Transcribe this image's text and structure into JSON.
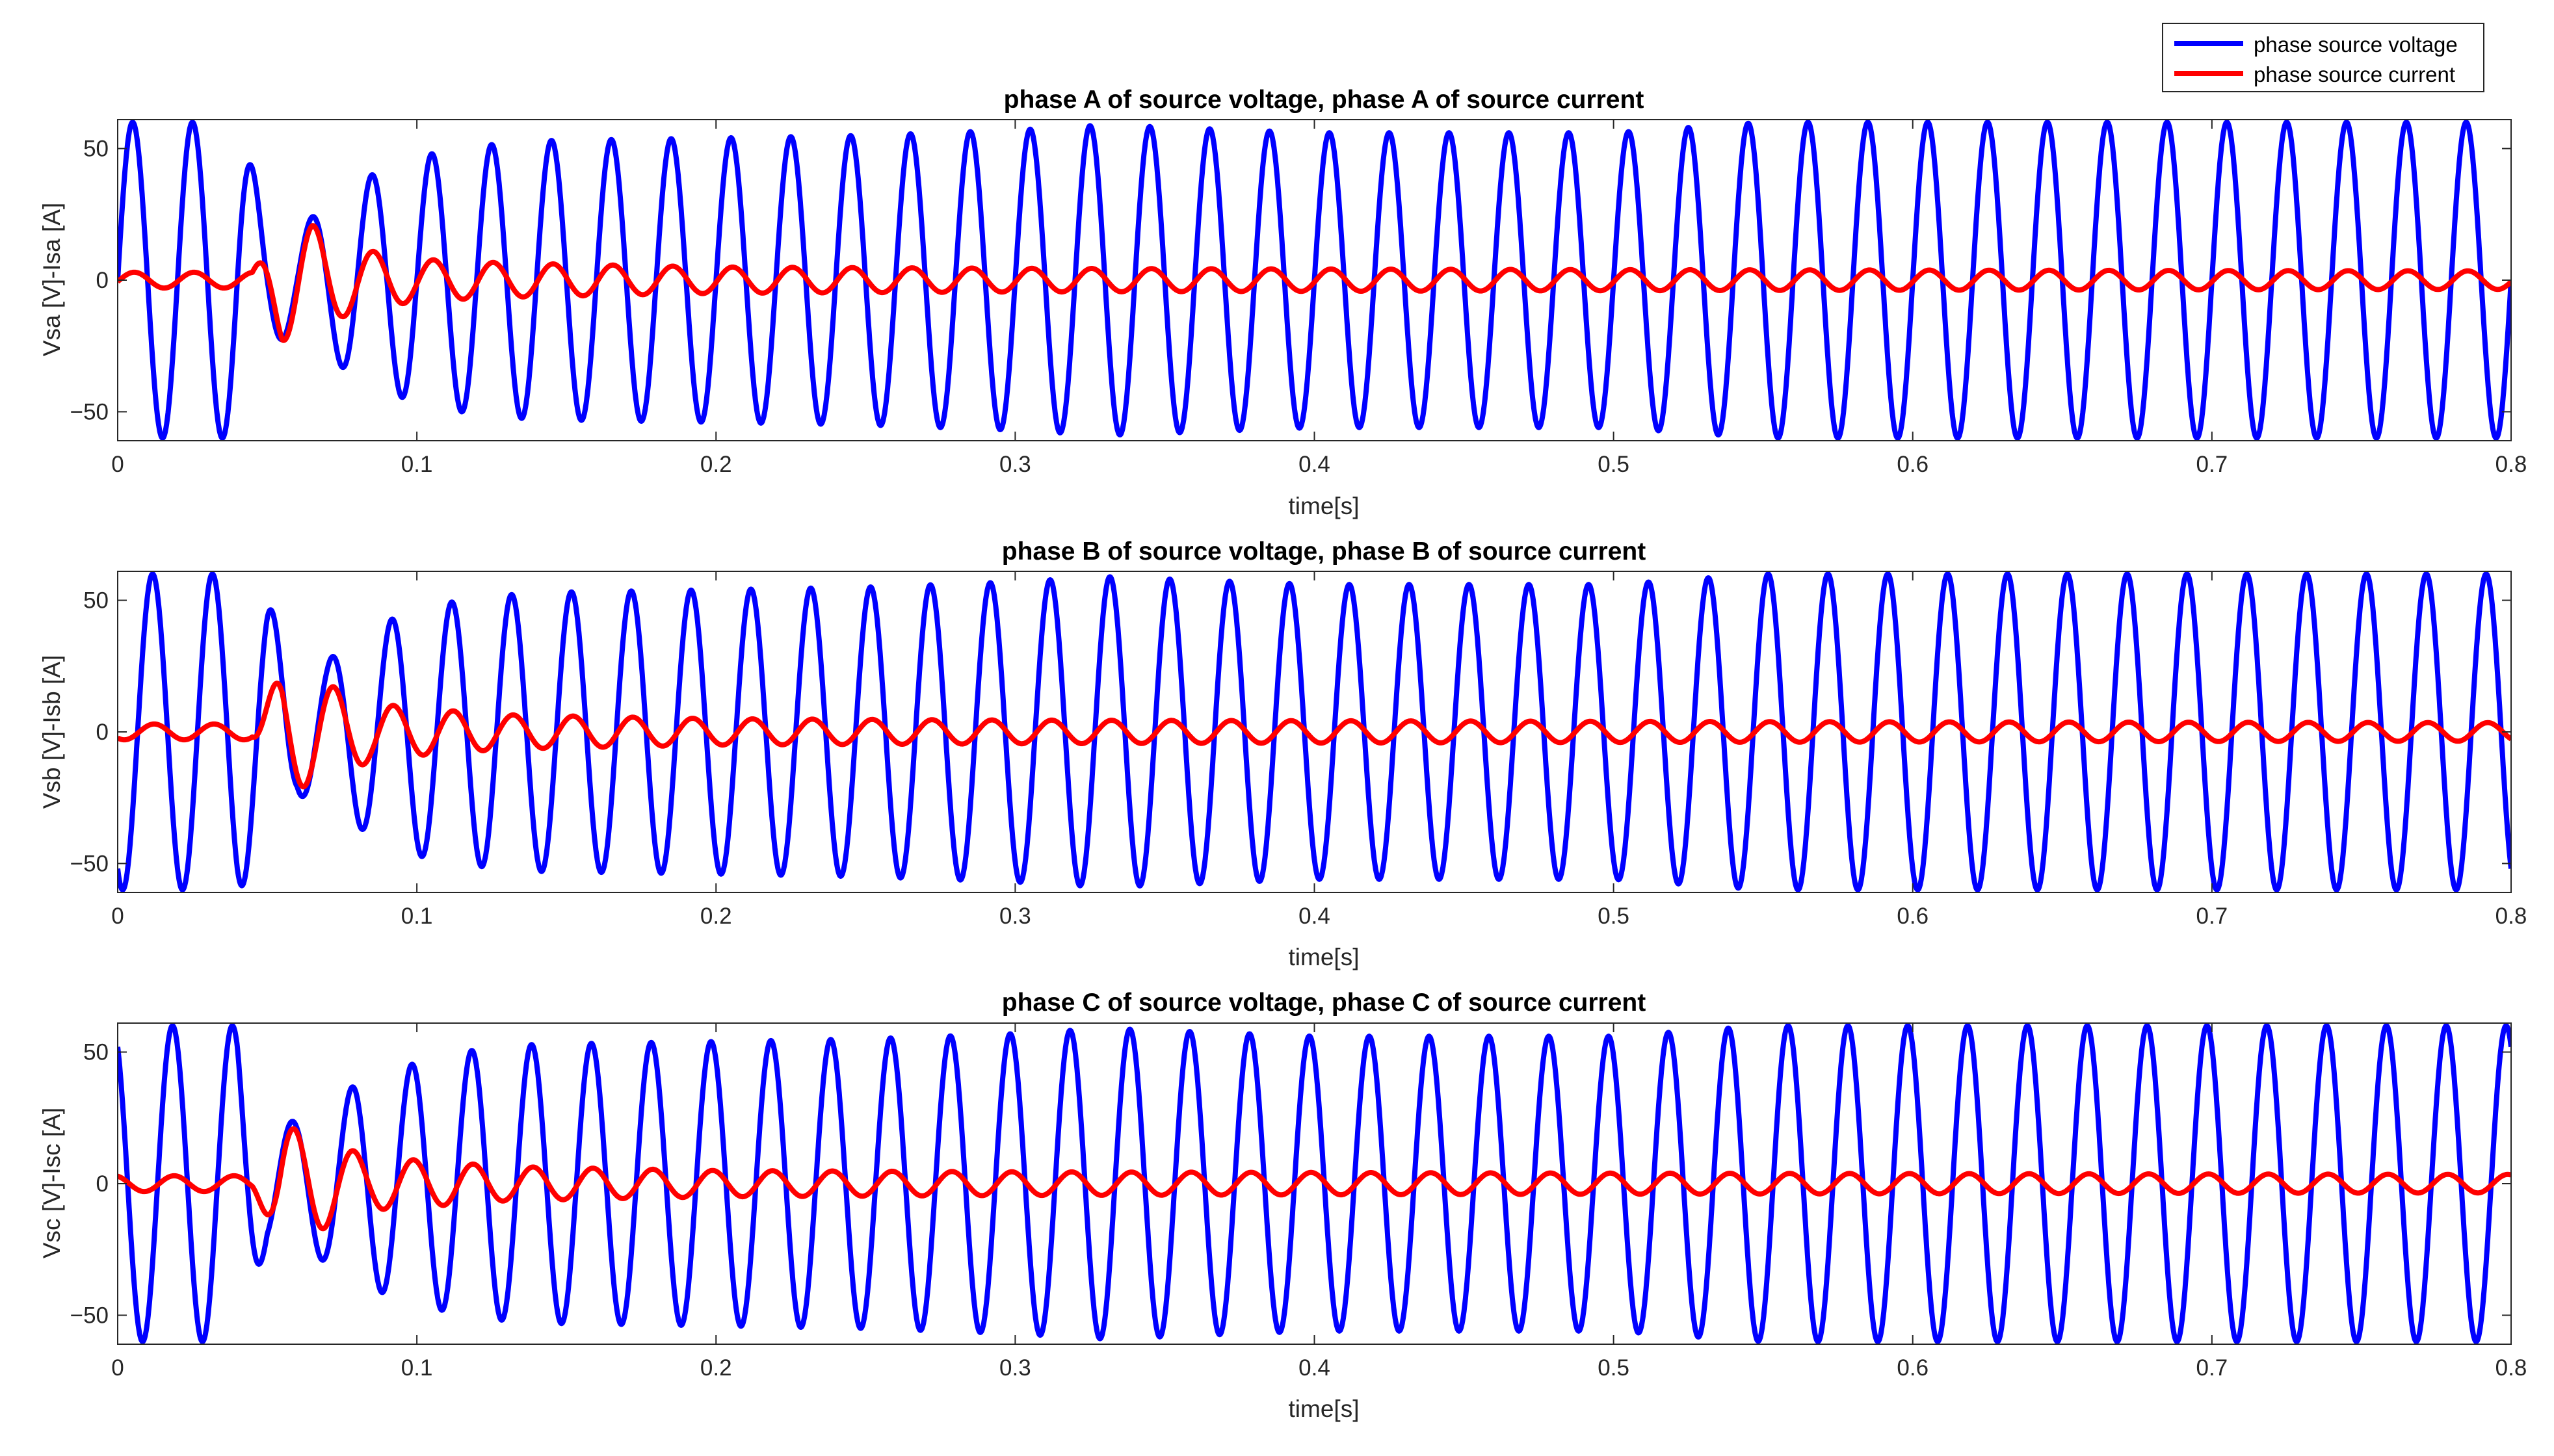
{
  "legend": {
    "entries": [
      {
        "label": "phase source voltage",
        "color": "#0000ff"
      },
      {
        "label": "phase source current",
        "color": "#ff0000"
      }
    ],
    "location": "top-right"
  },
  "chart_data": [
    {
      "type": "line",
      "title": "phase A of source voltage, phase A of source current",
      "xlabel": "time[s]",
      "ylabel": "Vsa [V]-Isa [A]",
      "xlim": [
        0,
        0.8
      ],
      "ylim": [
        -61,
        61
      ],
      "xticks": [
        0,
        0.1,
        0.2,
        0.3,
        0.4,
        0.5,
        0.6,
        0.7,
        0.8
      ],
      "xtick_labels": [
        "0",
        "0.1",
        "0.2",
        "0.3",
        "0.4",
        "0.5",
        "0.6",
        "0.7",
        "0.8"
      ],
      "yticks": [
        -50,
        0,
        50
      ],
      "ytick_labels": [
        "−50",
        "0",
        "50"
      ],
      "grid": false,
      "series": [
        {
          "name": "phase source voltage",
          "color": "#0000ff",
          "frequency_hz": 50,
          "phase_deg": 0,
          "amplitude_envelope": [
            [
              0,
              60
            ],
            [
              0.04,
              60
            ],
            [
              0.05,
              25
            ],
            [
              0.06,
              20
            ],
            [
              0.07,
              28
            ],
            [
              0.08,
              38
            ],
            [
              0.09,
              42
            ],
            [
              0.1,
              47
            ],
            [
              0.12,
              51
            ],
            [
              0.14,
              53
            ],
            [
              0.2,
              54
            ],
            [
              0.25,
              55
            ],
            [
              0.3,
              57
            ],
            [
              0.33,
              59
            ],
            [
              0.4,
              56
            ],
            [
              0.5,
              56
            ],
            [
              0.55,
              60
            ],
            [
              0.8,
              60
            ]
          ]
        },
        {
          "name": "phase source current",
          "color": "#ff0000",
          "frequency_hz": 50,
          "phase_deg": -10,
          "amplitude_envelope": [
            [
              0,
              3
            ],
            [
              0.045,
              3
            ],
            [
              0.055,
              23
            ],
            [
              0.065,
              21
            ],
            [
              0.075,
              14
            ],
            [
              0.085,
              11
            ],
            [
              0.1,
              8
            ],
            [
              0.13,
              6.5
            ],
            [
              0.2,
              5
            ],
            [
              0.3,
              4.5
            ],
            [
              0.5,
              4
            ],
            [
              0.8,
              3.5
            ]
          ]
        }
      ]
    },
    {
      "type": "line",
      "title": "phase B of source voltage, phase B of source current",
      "xlabel": "time[s]",
      "ylabel": "Vsb [V]-Isb [A]",
      "xlim": [
        0,
        0.8
      ],
      "ylim": [
        -61,
        61
      ],
      "xticks": [
        0,
        0.1,
        0.2,
        0.3,
        0.4,
        0.5,
        0.6,
        0.7,
        0.8
      ],
      "xtick_labels": [
        "0",
        "0.1",
        "0.2",
        "0.3",
        "0.4",
        "0.5",
        "0.6",
        "0.7",
        "0.8"
      ],
      "yticks": [
        -50,
        0,
        50
      ],
      "ytick_labels": [
        "−50",
        "0",
        "50"
      ],
      "grid": false,
      "series": [
        {
          "name": "phase source voltage",
          "color": "#0000ff",
          "frequency_hz": 50,
          "phase_deg": -120,
          "amplitude_envelope": [
            [
              0,
              60
            ],
            [
              0.04,
              60
            ],
            [
              0.05,
              50
            ],
            [
              0.06,
              24
            ],
            [
              0.07,
              27
            ],
            [
              0.08,
              36
            ],
            [
              0.09,
              42
            ],
            [
              0.1,
              47
            ],
            [
              0.12,
              51
            ],
            [
              0.14,
              53
            ],
            [
              0.2,
              54
            ],
            [
              0.25,
              55
            ],
            [
              0.3,
              57
            ],
            [
              0.33,
              59
            ],
            [
              0.4,
              56
            ],
            [
              0.5,
              56
            ],
            [
              0.55,
              60
            ],
            [
              0.8,
              60
            ]
          ]
        },
        {
          "name": "phase source current",
          "color": "#ff0000",
          "frequency_hz": 50,
          "phase_deg": -130,
          "amplitude_envelope": [
            [
              0,
              3
            ],
            [
              0.045,
              3
            ],
            [
              0.055,
              23
            ],
            [
              0.065,
              20
            ],
            [
              0.075,
              16
            ],
            [
              0.085,
              11
            ],
            [
              0.1,
              9
            ],
            [
              0.13,
              6.5
            ],
            [
              0.2,
              5
            ],
            [
              0.3,
              4.5
            ],
            [
              0.5,
              4
            ],
            [
              0.8,
              3.5
            ]
          ]
        }
      ]
    },
    {
      "type": "line",
      "title": "phase C of source voltage, phase C of source current",
      "xlabel": "time[s]",
      "ylabel": "Vsc [V]-Isc [A]",
      "xlim": [
        0,
        0.8
      ],
      "ylim": [
        -61,
        61
      ],
      "xticks": [
        0,
        0.1,
        0.2,
        0.3,
        0.4,
        0.5,
        0.6,
        0.7,
        0.8
      ],
      "xtick_labels": [
        "0",
        "0.1",
        "0.2",
        "0.3",
        "0.4",
        "0.5",
        "0.6",
        "0.7",
        "0.8"
      ],
      "yticks": [
        -50,
        0,
        50
      ],
      "ytick_labels": [
        "−50",
        "0",
        "50"
      ],
      "grid": false,
      "series": [
        {
          "name": "phase source voltage",
          "color": "#0000ff",
          "frequency_hz": 50,
          "phase_deg": 120,
          "amplitude_envelope": [
            [
              0,
              60
            ],
            [
              0.04,
              60
            ],
            [
              0.05,
              22
            ],
            [
              0.06,
              24
            ],
            [
              0.07,
              30
            ],
            [
              0.08,
              38
            ],
            [
              0.09,
              42
            ],
            [
              0.1,
              46
            ],
            [
              0.12,
              51
            ],
            [
              0.14,
              53
            ],
            [
              0.2,
              54
            ],
            [
              0.25,
              55
            ],
            [
              0.3,
              57
            ],
            [
              0.33,
              59
            ],
            [
              0.4,
              56
            ],
            [
              0.5,
              56
            ],
            [
              0.55,
              60
            ],
            [
              0.8,
              60
            ]
          ]
        },
        {
          "name": "phase source current",
          "color": "#ff0000",
          "frequency_hz": 50,
          "phase_deg": 110,
          "amplitude_envelope": [
            [
              0,
              3
            ],
            [
              0.045,
              3
            ],
            [
              0.055,
              22
            ],
            [
              0.065,
              19
            ],
            [
              0.075,
              14
            ],
            [
              0.085,
              10
            ],
            [
              0.1,
              9
            ],
            [
              0.13,
              6.5
            ],
            [
              0.2,
              5
            ],
            [
              0.3,
              4.5
            ],
            [
              0.5,
              4
            ],
            [
              0.8,
              3.5
            ]
          ]
        }
      ]
    }
  ]
}
